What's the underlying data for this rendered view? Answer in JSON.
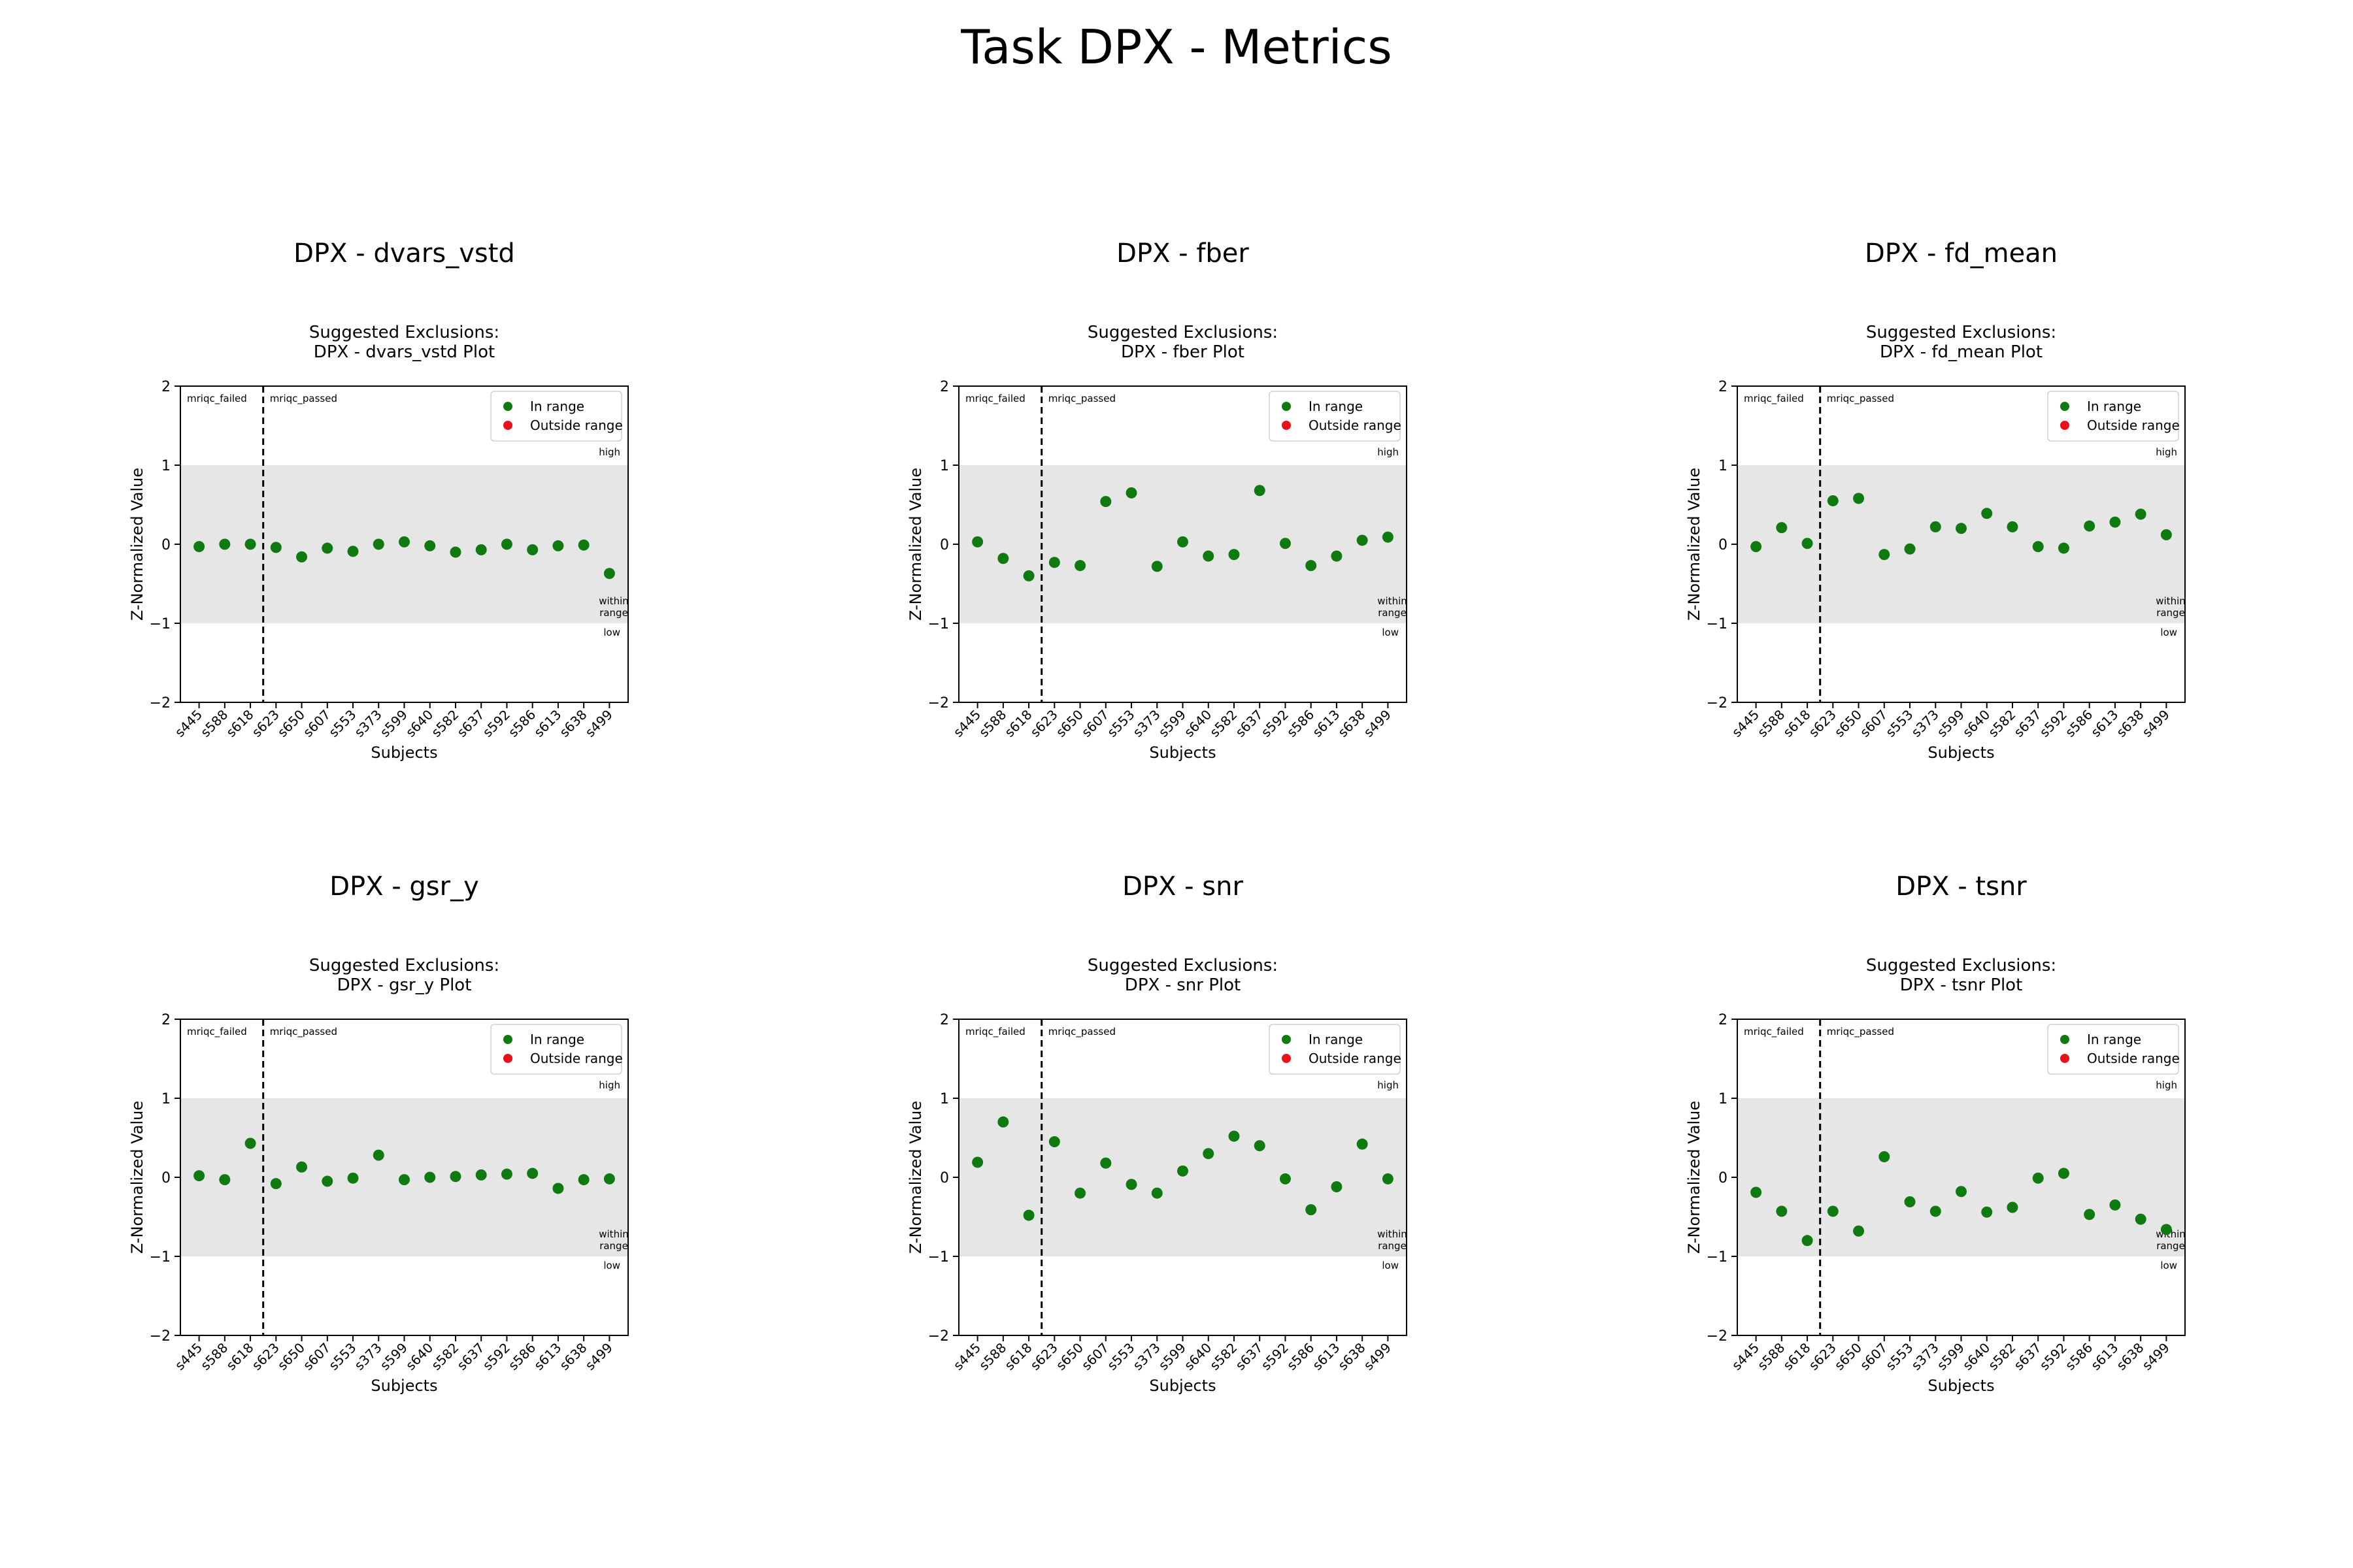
{
  "title": "Task DPX - Metrics",
  "chart_data": [
    {
      "type": "scatter",
      "title": "DPX - dvars_vstd",
      "subtitle": [
        "Suggested Exclusions:",
        "DPX - dvars_vstd Plot"
      ],
      "xlabel": "Subjects",
      "ylabel": "Z-Normalized Value",
      "ylim": [
        -2,
        2
      ],
      "yticks": [
        2,
        1,
        0,
        -1,
        -2
      ],
      "categories": [
        "s445",
        "s588",
        "s618",
        "s623",
        "s650",
        "s607",
        "s553",
        "s373",
        "s599",
        "s640",
        "s582",
        "s637",
        "s592",
        "s586",
        "s613",
        "s638",
        "s499"
      ],
      "values": [
        -0.03,
        0.0,
        0.0,
        -0.04,
        -0.16,
        -0.05,
        -0.09,
        0.0,
        0.03,
        -0.02,
        -0.1,
        -0.07,
        0.0,
        -0.07,
        -0.02,
        -0.01,
        -0.37
      ],
      "in_range": [
        1,
        1,
        1,
        1,
        1,
        1,
        1,
        1,
        1,
        1,
        1,
        1,
        1,
        1,
        1,
        1,
        1
      ],
      "range_band": [
        -1,
        1
      ],
      "divider_after_index": 2,
      "region_labels": [
        "mriqc_failed",
        "mriqc_passed"
      ],
      "band_labels": {
        "high": "high",
        "within": [
          "within",
          "range"
        ],
        "low": "low"
      },
      "legend": [
        {
          "label": "In range",
          "color": "#0f7a0f"
        },
        {
          "label": "Outside range",
          "color": "#e8121b"
        }
      ],
      "legend_position": "top-right",
      "grid": false
    },
    {
      "type": "scatter",
      "title": "DPX - fber",
      "subtitle": [
        "Suggested Exclusions:",
        "DPX - fber Plot"
      ],
      "xlabel": "Subjects",
      "ylabel": "Z-Normalized Value",
      "ylim": [
        -2,
        2
      ],
      "yticks": [
        2,
        1,
        0,
        -1,
        -2
      ],
      "categories": [
        "s445",
        "s588",
        "s618",
        "s623",
        "s650",
        "s607",
        "s553",
        "s373",
        "s599",
        "s640",
        "s582",
        "s637",
        "s592",
        "s586",
        "s613",
        "s638",
        "s499"
      ],
      "values": [
        0.03,
        -0.18,
        -0.4,
        -0.23,
        -0.27,
        0.54,
        0.65,
        -0.28,
        0.03,
        -0.15,
        -0.13,
        0.68,
        0.01,
        -0.27,
        -0.15,
        0.05,
        0.09
      ],
      "in_range": [
        1,
        1,
        1,
        1,
        1,
        1,
        1,
        1,
        1,
        1,
        1,
        1,
        1,
        1,
        1,
        1,
        1
      ],
      "range_band": [
        -1,
        1
      ],
      "divider_after_index": 2,
      "region_labels": [
        "mriqc_failed",
        "mriqc_passed"
      ],
      "band_labels": {
        "high": "high",
        "within": [
          "within",
          "range"
        ],
        "low": "low"
      },
      "legend": [
        {
          "label": "In range",
          "color": "#0f7a0f"
        },
        {
          "label": "Outside range",
          "color": "#e8121b"
        }
      ],
      "legend_position": "top-right",
      "grid": false
    },
    {
      "type": "scatter",
      "title": "DPX - fd_mean",
      "subtitle": [
        "Suggested Exclusions:",
        "DPX - fd_mean Plot"
      ],
      "xlabel": "Subjects",
      "ylabel": "Z-Normalized Value",
      "ylim": [
        -2,
        2
      ],
      "yticks": [
        2,
        1,
        0,
        -1,
        -2
      ],
      "categories": [
        "s445",
        "s588",
        "s618",
        "s623",
        "s650",
        "s607",
        "s553",
        "s373",
        "s599",
        "s640",
        "s582",
        "s637",
        "s592",
        "s586",
        "s613",
        "s638",
        "s499"
      ],
      "values": [
        -0.03,
        0.21,
        0.01,
        0.55,
        0.58,
        -0.13,
        -0.06,
        0.22,
        0.2,
        0.39,
        0.22,
        -0.03,
        -0.05,
        0.23,
        0.28,
        0.38,
        0.12
      ],
      "in_range": [
        1,
        1,
        1,
        1,
        1,
        1,
        1,
        1,
        1,
        1,
        1,
        1,
        1,
        1,
        1,
        1,
        1
      ],
      "range_band": [
        -1,
        1
      ],
      "divider_after_index": 2,
      "region_labels": [
        "mriqc_failed",
        "mriqc_passed"
      ],
      "band_labels": {
        "high": "high",
        "within": [
          "within",
          "range"
        ],
        "low": "low"
      },
      "legend": [
        {
          "label": "In range",
          "color": "#0f7a0f"
        },
        {
          "label": "Outside range",
          "color": "#e8121b"
        }
      ],
      "legend_position": "top-right",
      "grid": false
    },
    {
      "type": "scatter",
      "title": "DPX - gsr_y",
      "subtitle": [
        "Suggested Exclusions:",
        "DPX - gsr_y Plot"
      ],
      "xlabel": "Subjects",
      "ylabel": "Z-Normalized Value",
      "ylim": [
        -2,
        2
      ],
      "yticks": [
        2,
        1,
        0,
        -1,
        -2
      ],
      "categories": [
        "s445",
        "s588",
        "s618",
        "s623",
        "s650",
        "s607",
        "s553",
        "s373",
        "s599",
        "s640",
        "s582",
        "s637",
        "s592",
        "s586",
        "s613",
        "s638",
        "s499"
      ],
      "values": [
        0.02,
        -0.03,
        0.43,
        -0.08,
        0.13,
        -0.05,
        -0.01,
        0.28,
        -0.03,
        0.0,
        0.01,
        0.03,
        0.04,
        0.05,
        -0.14,
        -0.03,
        -0.02
      ],
      "in_range": [
        1,
        1,
        1,
        1,
        1,
        1,
        1,
        1,
        1,
        1,
        1,
        1,
        1,
        1,
        1,
        1,
        1
      ],
      "range_band": [
        -1,
        1
      ],
      "divider_after_index": 2,
      "region_labels": [
        "mriqc_failed",
        "mriqc_passed"
      ],
      "band_labels": {
        "high": "high",
        "within": [
          "within",
          "range"
        ],
        "low": "low"
      },
      "legend": [
        {
          "label": "In range",
          "color": "#0f7a0f"
        },
        {
          "label": "Outside range",
          "color": "#e8121b"
        }
      ],
      "legend_position": "top-right",
      "grid": false
    },
    {
      "type": "scatter",
      "title": "DPX - snr",
      "subtitle": [
        "Suggested Exclusions:",
        "DPX - snr Plot"
      ],
      "xlabel": "Subjects",
      "ylabel": "Z-Normalized Value",
      "ylim": [
        -2,
        2
      ],
      "yticks": [
        2,
        1,
        0,
        -1,
        -2
      ],
      "categories": [
        "s445",
        "s588",
        "s618",
        "s623",
        "s650",
        "s607",
        "s553",
        "s373",
        "s599",
        "s640",
        "s582",
        "s637",
        "s592",
        "s586",
        "s613",
        "s638",
        "s499"
      ],
      "values": [
        0.19,
        0.7,
        -0.48,
        0.45,
        -0.2,
        0.18,
        -0.09,
        -0.2,
        0.08,
        0.3,
        0.52,
        0.4,
        -0.02,
        -0.41,
        -0.12,
        0.42,
        -0.02
      ],
      "in_range": [
        1,
        1,
        1,
        1,
        1,
        1,
        1,
        1,
        1,
        1,
        1,
        1,
        1,
        1,
        1,
        1,
        1
      ],
      "range_band": [
        -1,
        1
      ],
      "divider_after_index": 2,
      "region_labels": [
        "mriqc_failed",
        "mriqc_passed"
      ],
      "band_labels": {
        "high": "high",
        "within": [
          "within",
          "range"
        ],
        "low": "low"
      },
      "legend": [
        {
          "label": "In range",
          "color": "#0f7a0f"
        },
        {
          "label": "Outside range",
          "color": "#e8121b"
        }
      ],
      "legend_position": "top-right",
      "grid": false
    },
    {
      "type": "scatter",
      "title": "DPX - tsnr",
      "subtitle": [
        "Suggested Exclusions:",
        "DPX - tsnr Plot"
      ],
      "xlabel": "Subjects",
      "ylabel": "Z-Normalized Value",
      "ylim": [
        -2,
        2
      ],
      "yticks": [
        2,
        1,
        0,
        -1,
        -2
      ],
      "categories": [
        "s445",
        "s588",
        "s618",
        "s623",
        "s650",
        "s607",
        "s553",
        "s373",
        "s599",
        "s640",
        "s582",
        "s637",
        "s592",
        "s586",
        "s613",
        "s638",
        "s499"
      ],
      "values": [
        -0.19,
        -0.43,
        -0.8,
        -0.43,
        -0.68,
        0.26,
        -0.31,
        -0.43,
        -0.18,
        -0.44,
        -0.38,
        -0.01,
        0.05,
        -0.47,
        -0.35,
        -0.53,
        -0.66
      ],
      "in_range": [
        1,
        1,
        1,
        1,
        1,
        1,
        1,
        1,
        1,
        1,
        1,
        1,
        1,
        1,
        1,
        1,
        1
      ],
      "range_band": [
        -1,
        1
      ],
      "divider_after_index": 2,
      "region_labels": [
        "mriqc_failed",
        "mriqc_passed"
      ],
      "band_labels": {
        "high": "high",
        "within": [
          "within",
          "range"
        ],
        "low": "low"
      },
      "legend": [
        {
          "label": "In range",
          "color": "#0f7a0f"
        },
        {
          "label": "Outside range",
          "color": "#e8121b"
        }
      ],
      "legend_position": "top-right",
      "grid": false
    }
  ]
}
